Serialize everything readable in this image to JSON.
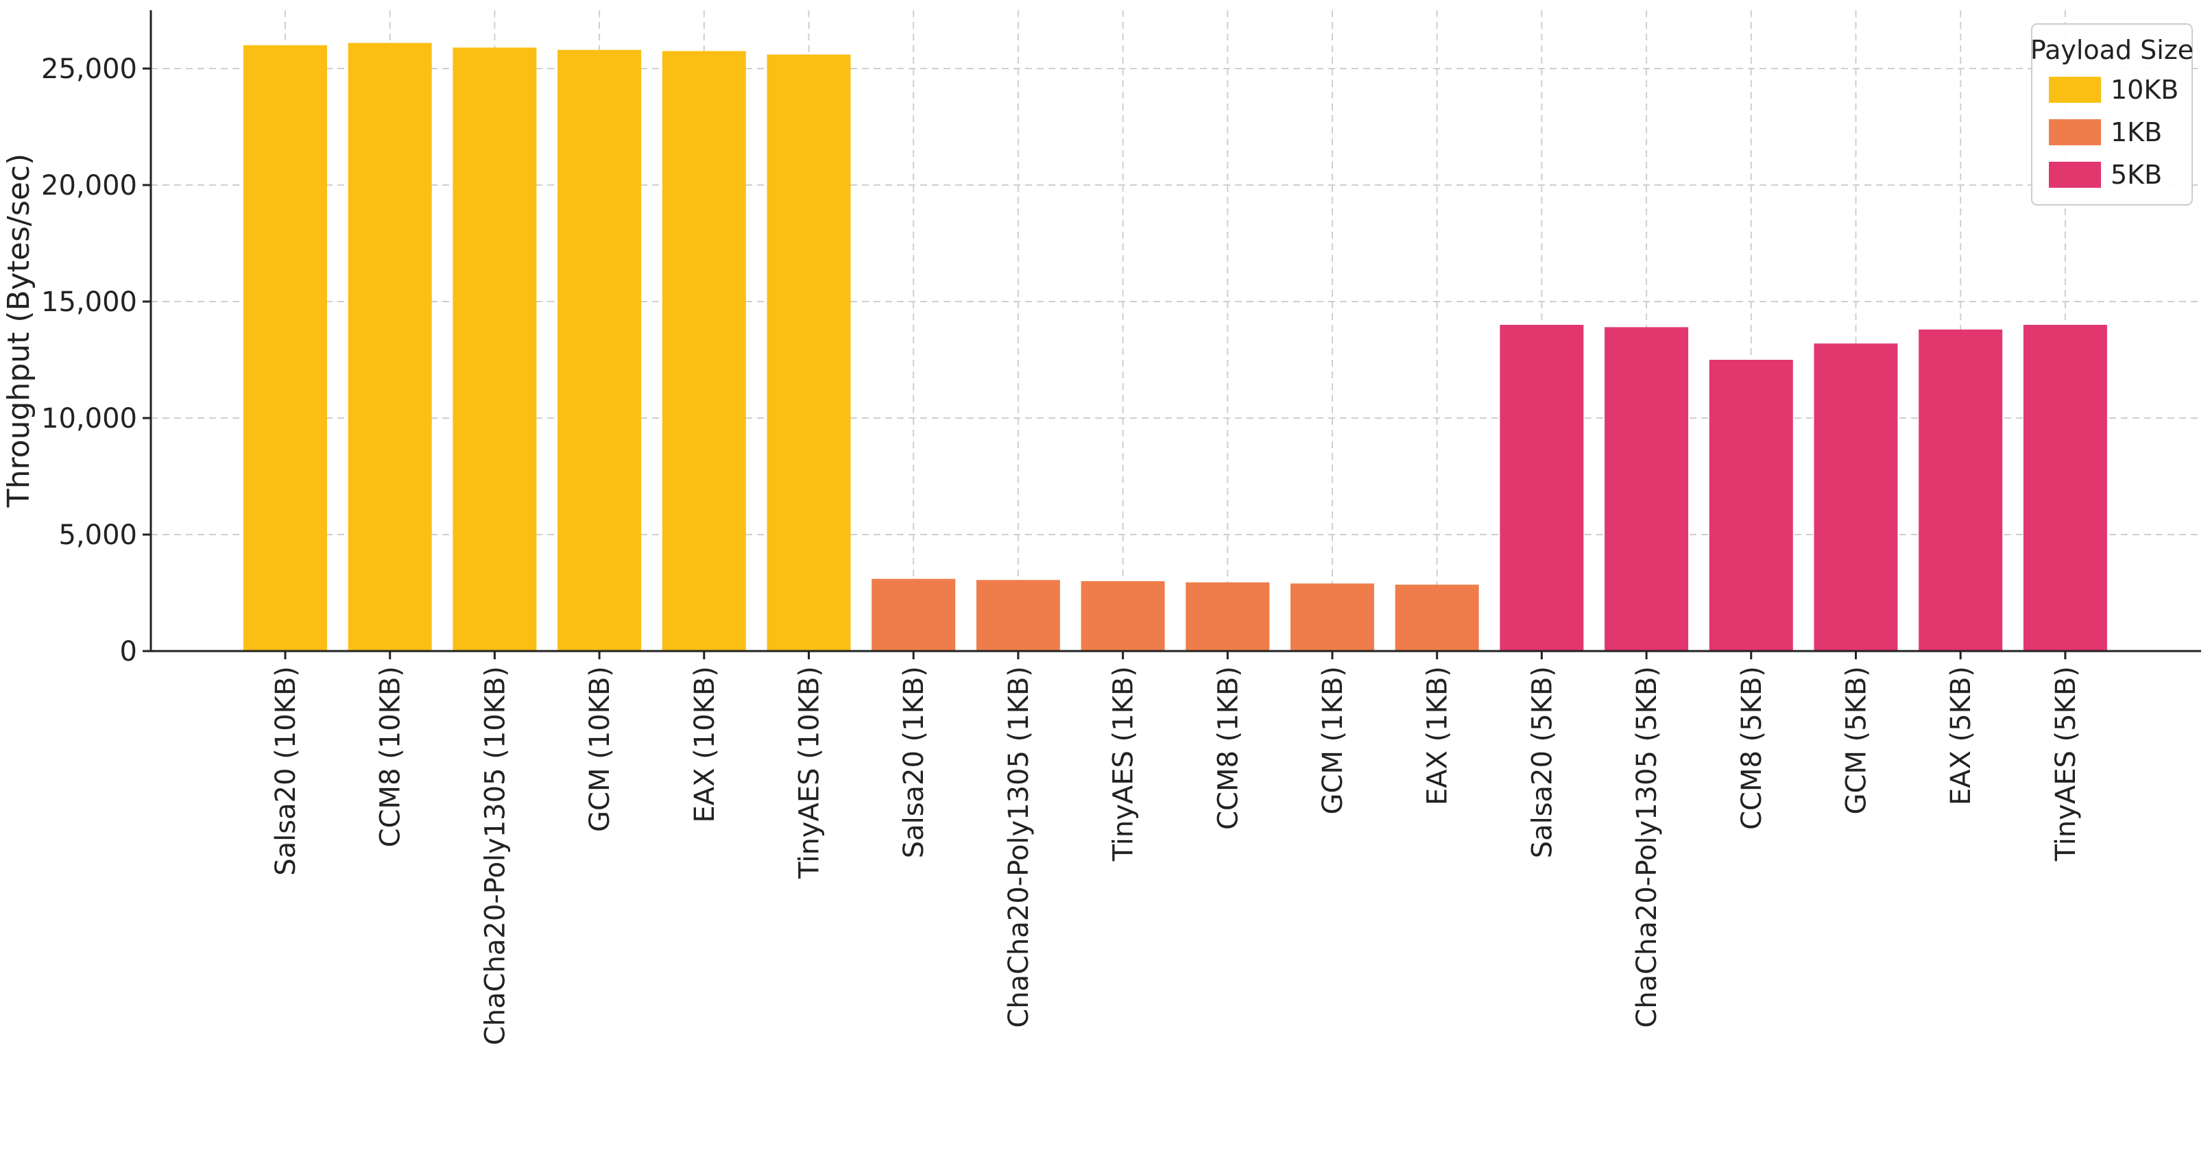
{
  "chart_data": {
    "type": "bar",
    "title": "",
    "xlabel": "",
    "ylabel": "Throughput (Bytes/sec)",
    "ylim": [
      0,
      27500
    ],
    "yticks": [
      0,
      5000,
      10000,
      15000,
      20000,
      25000
    ],
    "ytick_labels": [
      "0",
      "5,000",
      "10,000",
      "15,000",
      "20,000",
      "25,000"
    ],
    "grid": true,
    "legend": {
      "title": "Payload Size",
      "placement": "top-right",
      "entries": [
        {
          "label": "10KB",
          "color": "#FBBF14"
        },
        {
          "label": "1KB",
          "color": "#EF7D4B"
        },
        {
          "label": "5KB",
          "color": "#E2366E"
        }
      ]
    },
    "categories": [
      "Salsa20 (10KB)",
      "CCM8 (10KB)",
      "ChaCha20-Poly1305 (10KB)",
      "GCM (10KB)",
      "EAX (10KB)",
      "TinyAES (10KB)",
      "Salsa20 (1KB)",
      "ChaCha20-Poly1305 (1KB)",
      "TinyAES (1KB)",
      "CCM8 (1KB)",
      "GCM (1KB)",
      "EAX (1KB)",
      "Salsa20 (5KB)",
      "ChaCha20-Poly1305 (5KB)",
      "CCM8 (5KB)",
      "GCM (5KB)",
      "EAX (5KB)",
      "TinyAES (5KB)"
    ],
    "values": [
      26000,
      26100,
      25900,
      25800,
      25750,
      25600,
      3100,
      3050,
      3000,
      2950,
      2900,
      2850,
      14000,
      13900,
      12500,
      13200,
      13800,
      14000
    ],
    "groups": [
      "10KB",
      "10KB",
      "10KB",
      "10KB",
      "10KB",
      "10KB",
      "1KB",
      "1KB",
      "1KB",
      "1KB",
      "1KB",
      "1KB",
      "5KB",
      "5KB",
      "5KB",
      "5KB",
      "5KB",
      "5KB"
    ]
  }
}
